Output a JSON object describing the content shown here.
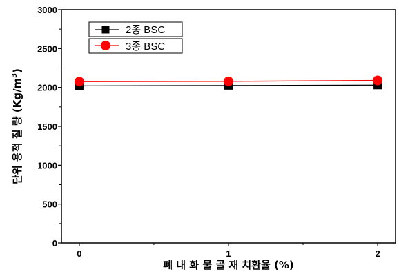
{
  "chart_data": {
    "type": "line",
    "x": [
      0,
      1,
      2
    ],
    "xticks": [
      "0",
      "1",
      "2"
    ],
    "xlim": [
      -0.12,
      2.12
    ],
    "ylim": [
      0,
      3000
    ],
    "yticks": [
      "0",
      "500",
      "1000",
      "1500",
      "2000",
      "2500",
      "3000"
    ],
    "xlabel": "폐 내 화 물 골 재 치환율 (%)",
    "ylabel": "단위 용적 질 량 (Kg/m",
    "ylabel_sup": "3",
    "ylabel_close": ")",
    "legend_position": "top-left",
    "grid": false,
    "series": [
      {
        "name": "2종 BSC",
        "values": [
          2020,
          2025,
          2030
        ],
        "color": "#000000",
        "marker": "square"
      },
      {
        "name": "3종 BSC",
        "values": [
          2075,
          2078,
          2090
        ],
        "color": "#ff0000",
        "marker": "circle"
      }
    ]
  }
}
